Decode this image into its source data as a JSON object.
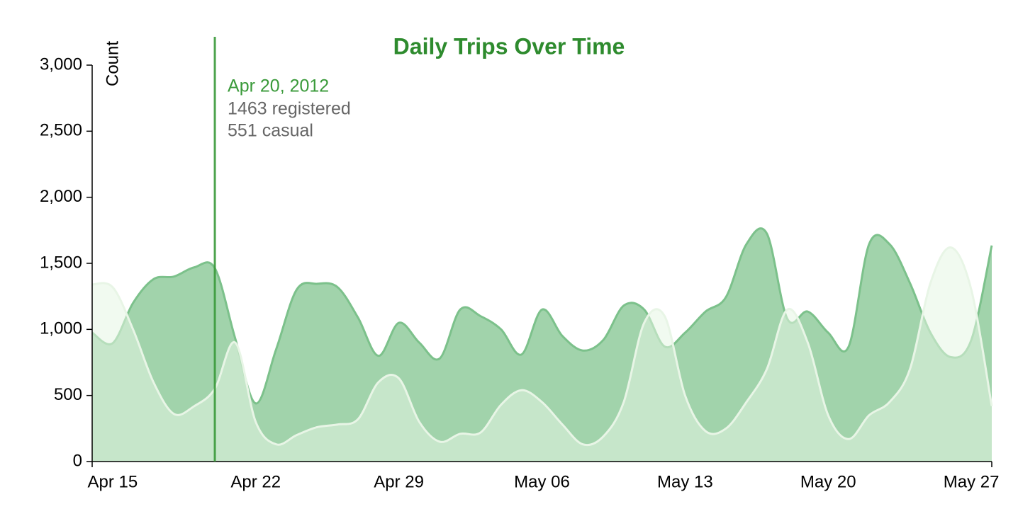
{
  "chart_data": {
    "type": "area",
    "title": "Daily Trips Over Time",
    "y_label": "Count",
    "x": [
      "2012-04-14",
      "2012-04-15",
      "2012-04-16",
      "2012-04-17",
      "2012-04-18",
      "2012-04-19",
      "2012-04-20",
      "2012-04-21",
      "2012-04-22",
      "2012-04-23",
      "2012-04-24",
      "2012-04-25",
      "2012-04-26",
      "2012-04-27",
      "2012-04-28",
      "2012-04-29",
      "2012-04-30",
      "2012-05-01",
      "2012-05-02",
      "2012-05-03",
      "2012-05-04",
      "2012-05-05",
      "2012-05-06",
      "2012-05-07",
      "2012-05-08",
      "2012-05-09",
      "2012-05-10",
      "2012-05-11",
      "2012-05-12",
      "2012-05-13",
      "2012-05-14",
      "2012-05-15",
      "2012-05-16",
      "2012-05-17",
      "2012-05-18",
      "2012-05-19",
      "2012-05-20",
      "2012-05-21",
      "2012-05-22",
      "2012-05-23",
      "2012-05-24",
      "2012-05-25",
      "2012-05-26",
      "2012-05-27",
      "2012-05-28"
    ],
    "series": [
      {
        "name": "registered",
        "color": "#7cc18b",
        "fill": "#a1d3ab",
        "values": [
          975,
          895,
          1200,
          1380,
          1400,
          1470,
          1463,
          930,
          440,
          850,
          1300,
          1345,
          1320,
          1090,
          800,
          1050,
          900,
          780,
          1150,
          1100,
          1000,
          810,
          1150,
          950,
          840,
          920,
          1180,
          1150,
          870,
          975,
          1135,
          1245,
          1645,
          1725,
          1080,
          1135,
          975,
          870,
          1645,
          1645,
          1350,
          975,
          790,
          920,
          1635
        ]
      },
      {
        "name": "casual",
        "color": "#e8f5e6",
        "fill": "rgba(230,245,228,0.55)",
        "values": [
          1340,
          1320,
          1000,
          600,
          360,
          420,
          551,
          900,
          300,
          130,
          200,
          260,
          280,
          320,
          600,
          630,
          300,
          150,
          210,
          220,
          430,
          540,
          450,
          280,
          130,
          190,
          450,
          1050,
          1100,
          500,
          230,
          250,
          450,
          700,
          1150,
          900,
          350,
          170,
          350,
          450,
          700,
          1350,
          1620,
          1300,
          420
        ]
      }
    ],
    "xlim": [
      "2012-04-14",
      "2012-05-28"
    ],
    "xticks": [
      {
        "value": "2012-04-15",
        "label": "Apr 15"
      },
      {
        "value": "2012-04-22",
        "label": "Apr 22"
      },
      {
        "value": "2012-04-29",
        "label": "Apr 29"
      },
      {
        "value": "2012-05-06",
        "label": "May 06"
      },
      {
        "value": "2012-05-13",
        "label": "May 13"
      },
      {
        "value": "2012-05-20",
        "label": "May 20"
      },
      {
        "value": "2012-05-27",
        "label": "May 27"
      }
    ],
    "ylim": [
      0,
      3000
    ],
    "yticks": [
      0,
      500,
      {
        "value": 1000,
        "label": "1,000"
      },
      {
        "value": 1500,
        "label": "1,500"
      },
      {
        "value": 2000,
        "label": "2,000"
      },
      {
        "value": 2500,
        "label": "2,500"
      },
      {
        "value": 3000,
        "label": "3,000"
      }
    ],
    "tooltip": {
      "x": "2012-04-20",
      "label": "Apr 20, 2012",
      "items": [
        "1463 registered",
        "551 casual"
      ],
      "color": "#3a9a3a"
    }
  }
}
